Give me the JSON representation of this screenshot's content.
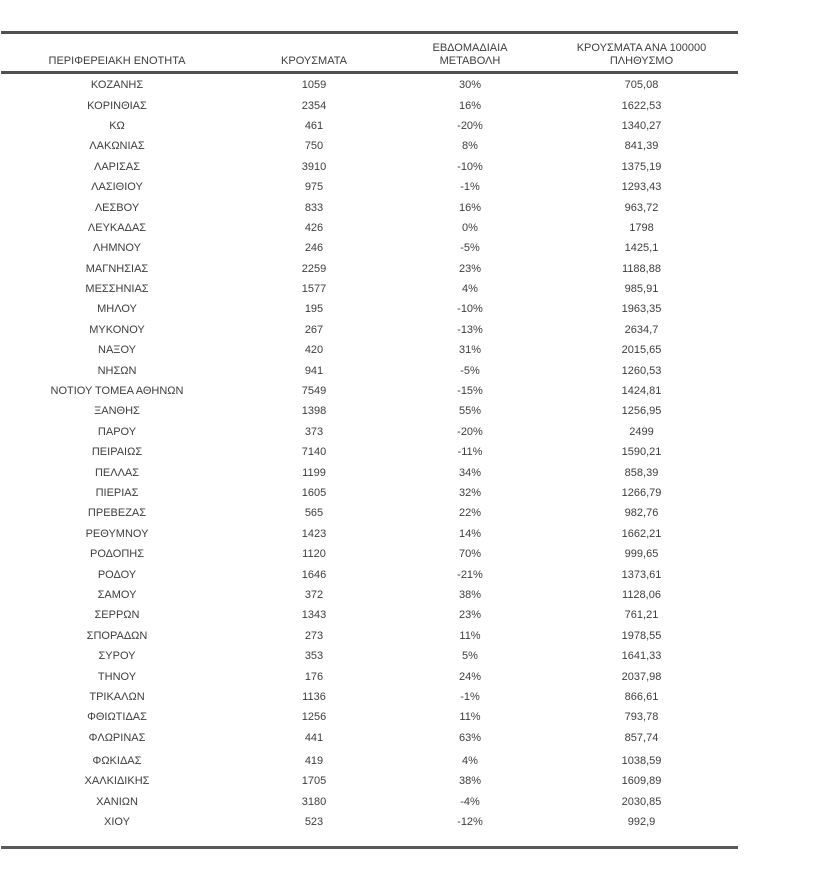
{
  "colors": {
    "background": "#ffffff",
    "text": "#3d3d3d",
    "border": "#4f4f4f"
  },
  "table": {
    "columns": [
      {
        "id": "region",
        "lines": [
          "ΠΕΡΙΦΕΡΕΙΑΚΗ ΕΝΟΤΗΤΑ"
        ]
      },
      {
        "id": "cases",
        "lines": [
          "ΚΡΟΥΣΜΑΤΑ"
        ]
      },
      {
        "id": "weekly_change",
        "lines": [
          "ΕΒΔΟΜΑΔΙΑΙΑ",
          "ΜΕΤΑΒΟΛΗ"
        ]
      },
      {
        "id": "per_100k",
        "lines": [
          "ΚΡΟΥΣΜΑΤΑ ΑΝΑ 100000",
          "ΠΛΗΘΥΣΜΟ"
        ]
      }
    ],
    "rows": [
      {
        "region": "ΚΟΖΑΝΗΣ",
        "cases": "1059",
        "weekly_change": "30%",
        "per_100k": "705,08"
      },
      {
        "region": "ΚΟΡΙΝΘΙΑΣ",
        "cases": "2354",
        "weekly_change": "16%",
        "per_100k": "1622,53"
      },
      {
        "region": "ΚΩ",
        "cases": "461",
        "weekly_change": "-20%",
        "per_100k": "1340,27"
      },
      {
        "region": "ΛΑΚΩΝΙΑΣ",
        "cases": "750",
        "weekly_change": "8%",
        "per_100k": "841,39"
      },
      {
        "region": "ΛΑΡΙΣΑΣ",
        "cases": "3910",
        "weekly_change": "-10%",
        "per_100k": "1375,19"
      },
      {
        "region": "ΛΑΣΙΘΙΟΥ",
        "cases": "975",
        "weekly_change": "-1%",
        "per_100k": "1293,43"
      },
      {
        "region": "ΛΕΣΒΟΥ",
        "cases": "833",
        "weekly_change": "16%",
        "per_100k": "963,72"
      },
      {
        "region": "ΛΕΥΚΑΔΑΣ",
        "cases": "426",
        "weekly_change": "0%",
        "per_100k": "1798"
      },
      {
        "region": "ΛΗΜΝΟΥ",
        "cases": "246",
        "weekly_change": "-5%",
        "per_100k": "1425,1"
      },
      {
        "region": "ΜΑΓΝΗΣΙΑΣ",
        "cases": "2259",
        "weekly_change": "23%",
        "per_100k": "1188,88"
      },
      {
        "region": "ΜΕΣΣΗΝΙΑΣ",
        "cases": "1577",
        "weekly_change": "4%",
        "per_100k": "985,91"
      },
      {
        "region": "ΜΗΛΟΥ",
        "cases": "195",
        "weekly_change": "-10%",
        "per_100k": "1963,35"
      },
      {
        "region": "ΜΥΚΟΝΟΥ",
        "cases": "267",
        "weekly_change": "-13%",
        "per_100k": "2634,7"
      },
      {
        "region": "ΝΑΞΟΥ",
        "cases": "420",
        "weekly_change": "31%",
        "per_100k": "2015,65"
      },
      {
        "region": "ΝΗΣΩΝ",
        "cases": "941",
        "weekly_change": "-5%",
        "per_100k": "1260,53"
      },
      {
        "region": "ΝΟΤΙΟΥ ΤΟΜΕΑ ΑΘΗΝΩΝ",
        "cases": "7549",
        "weekly_change": "-15%",
        "per_100k": "1424,81"
      },
      {
        "region": "ΞΑΝΘΗΣ",
        "cases": "1398",
        "weekly_change": "55%",
        "per_100k": "1256,95"
      },
      {
        "region": "ΠΑΡΟΥ",
        "cases": "373",
        "weekly_change": "-20%",
        "per_100k": "2499"
      },
      {
        "region": "ΠΕΙΡΑΙΩΣ",
        "cases": "7140",
        "weekly_change": "-11%",
        "per_100k": "1590,21"
      },
      {
        "region": "ΠΕΛΛΑΣ",
        "cases": "1199",
        "weekly_change": "34%",
        "per_100k": "858,39"
      },
      {
        "region": "ΠΙΕΡΙΑΣ",
        "cases": "1605",
        "weekly_change": "32%",
        "per_100k": "1266,79"
      },
      {
        "region": "ΠΡΕΒΕΖΑΣ",
        "cases": "565",
        "weekly_change": "22%",
        "per_100k": "982,76"
      },
      {
        "region": "ΡΕΘΥΜΝΟΥ",
        "cases": "1423",
        "weekly_change": "14%",
        "per_100k": "1662,21"
      },
      {
        "region": "ΡΟΔΟΠΗΣ",
        "cases": "1120",
        "weekly_change": "70%",
        "per_100k": "999,65"
      },
      {
        "region": "ΡΟΔΟΥ",
        "cases": "1646",
        "weekly_change": "-21%",
        "per_100k": "1373,61"
      },
      {
        "region": "ΣΑΜΟΥ",
        "cases": "372",
        "weekly_change": "38%",
        "per_100k": "1128,06"
      },
      {
        "region": "ΣΕΡΡΩΝ",
        "cases": "1343",
        "weekly_change": "23%",
        "per_100k": "761,21"
      },
      {
        "region": "ΣΠΟΡΑΔΩΝ",
        "cases": "273",
        "weekly_change": "11%",
        "per_100k": "1978,55"
      },
      {
        "region": "ΣΥΡΟΥ",
        "cases": "353",
        "weekly_change": "5%",
        "per_100k": "1641,33"
      },
      {
        "region": "ΤΗΝΟΥ",
        "cases": "176",
        "weekly_change": "24%",
        "per_100k": "2037,98"
      },
      {
        "region": "ΤΡΙΚΑΛΩΝ",
        "cases": "1136",
        "weekly_change": "-1%",
        "per_100k": "866,61"
      },
      {
        "region": "ΦΘΙΩΤΙΔΑΣ",
        "cases": "1256",
        "weekly_change": "11%",
        "per_100k": "793,78"
      },
      {
        "region": "ΦΛΩΡΙΝΑΣ",
        "cases": "441",
        "weekly_change": "63%",
        "per_100k": "857,74"
      },
      {
        "region": "ΦΩΚΙΔΑΣ",
        "cases": "419",
        "weekly_change": "4%",
        "per_100k": "1038,59",
        "gap_before": true
      },
      {
        "region": "ΧΑΛΚΙΔΙΚΗΣ",
        "cases": "1705",
        "weekly_change": "38%",
        "per_100k": "1609,89"
      },
      {
        "region": "ΧΑΝΙΩΝ",
        "cases": "3180",
        "weekly_change": "-4%",
        "per_100k": "2030,85"
      },
      {
        "region": "ΧΙΟΥ",
        "cases": "523",
        "weekly_change": "-12%",
        "per_100k": "992,9"
      }
    ]
  }
}
